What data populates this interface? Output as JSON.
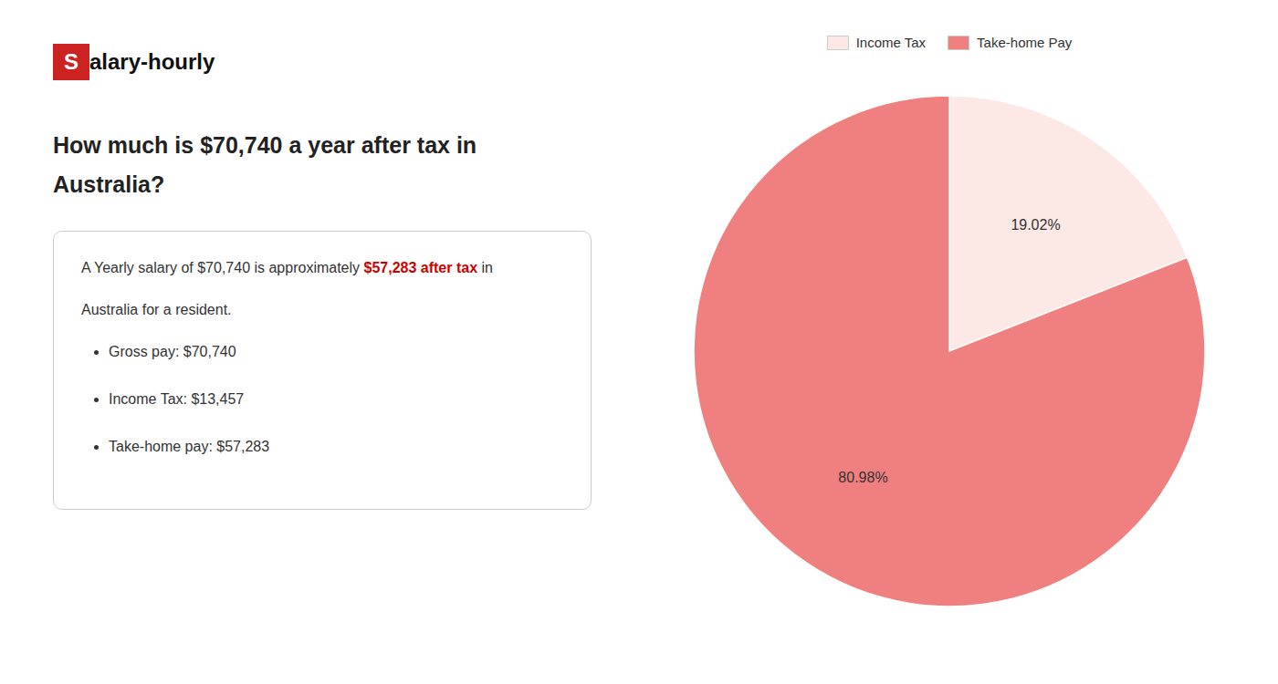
{
  "chart_data": {
    "type": "pie",
    "title": [
      "How much is $70,740 a year after tax in",
      "Australia?"
    ],
    "categories": [
      "Income Tax",
      "Take-home Pay"
    ],
    "values": [
      19.02,
      80.98
    ],
    "value_labels": [
      "19.02%",
      "80.98%"
    ],
    "colors": [
      "#fce8e4",
      "#f08080"
    ],
    "data_labels": true,
    "legend": "top",
    "annotations": {
      "logo": [
        {
          "text": "S",
          "color": "#cc2222"
        },
        {
          "text": "alary-hourly"
        }
      ],
      "summary": [
        [
          {
            "text": "A Yearly salary of $70,740 is approximately "
          },
          {
            "text": "$57,283 after tax",
            "color": "#cc0000"
          },
          {
            "text": " in"
          }
        ],
        [
          {
            "text": "Australia for a resident."
          }
        ]
      ],
      "bullets": [
        "Gross pay: $70,740",
        "Income Tax: $13,457",
        "Take-home pay: $57,283"
      ]
    }
  }
}
